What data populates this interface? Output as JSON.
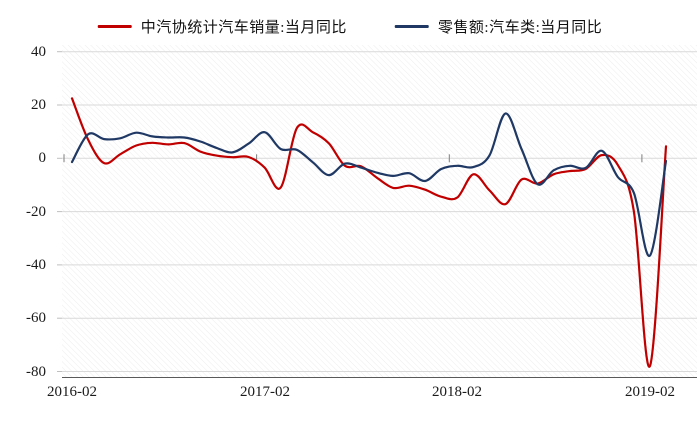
{
  "legend": [
    {
      "label": "中汽协统计汽车销量:当月同比",
      "color": "#c00000"
    },
    {
      "label": "零售额:汽车类:当月同比",
      "color": "#1f3864"
    }
  ],
  "chart_data": {
    "type": "line",
    "smooth": true,
    "x": [
      "2016-02",
      "2016-03",
      "2016-04",
      "2016-05",
      "2016-06",
      "2016-07",
      "2016-08",
      "2016-09",
      "2016-10",
      "2016-11",
      "2016-12",
      "2017-01",
      "2017-02",
      "2017-03",
      "2017-04",
      "2017-05",
      "2017-06",
      "2017-07",
      "2017-08",
      "2017-09",
      "2017-10",
      "2017-11",
      "2017-12",
      "2018-01",
      "2018-02",
      "2018-03",
      "2018-04",
      "2018-05",
      "2018-06",
      "2018-07",
      "2018-08",
      "2018-09",
      "2018-10",
      "2018-11",
      "2018-12",
      "2019-01",
      "2019-02",
      "2019-03"
    ],
    "series": [
      {
        "name": "中汽协统计汽车销量:当月同比",
        "color": "#c00000",
        "values": [
          22.5,
          7.0,
          -1.8,
          1.5,
          4.8,
          5.8,
          5.2,
          5.7,
          2.5,
          1.0,
          0.4,
          0.5,
          -3.5,
          -11.0,
          11.3,
          9.8,
          5.6,
          -2.8,
          -3.0,
          -7.3,
          -11.1,
          -10.3,
          -11.8,
          -14.4,
          -14.7,
          -6.0,
          -12.0,
          -17.2,
          -8.0,
          -9.5,
          -6.0,
          -4.8,
          -4.0,
          1.2,
          -2.5,
          -20.0,
          -78.0,
          4.5
        ]
      },
      {
        "name": "零售额:汽车类:当月同比",
        "color": "#1f3864",
        "values": [
          -1.4,
          9.0,
          7.2,
          7.5,
          9.6,
          8.2,
          7.8,
          7.8,
          6.3,
          3.9,
          2.2,
          5.5,
          9.8,
          3.5,
          3.2,
          -1.5,
          -6.3,
          -2.0,
          -3.5,
          -5.4,
          -6.6,
          -5.6,
          -8.5,
          -4.0,
          -2.8,
          -3.3,
          1.0,
          16.8,
          3.5,
          -9.7,
          -4.5,
          -2.8,
          -3.6,
          2.8,
          -7.0,
          -13.0,
          -36.5,
          -1.0
        ]
      }
    ],
    "title": "",
    "xlabel": "",
    "ylabel": "",
    "ylim": [
      -80,
      40
    ],
    "yticks": [
      40,
      20,
      0,
      -20,
      -40,
      -60,
      -80
    ],
    "ytick_labels": [
      "40",
      "20",
      "0",
      "-20",
      "-40",
      "-60",
      "-80"
    ],
    "xtick_labels": [
      "2016-02",
      "2017-02",
      "2018-02",
      "2019-02"
    ],
    "xtick_index": [
      0,
      12,
      24,
      36
    ],
    "grid": true,
    "legend_position": "top",
    "gridline_color": "#d9d9d9",
    "axis_line_color": "#595959",
    "tick_color": "#7f7f7f"
  }
}
